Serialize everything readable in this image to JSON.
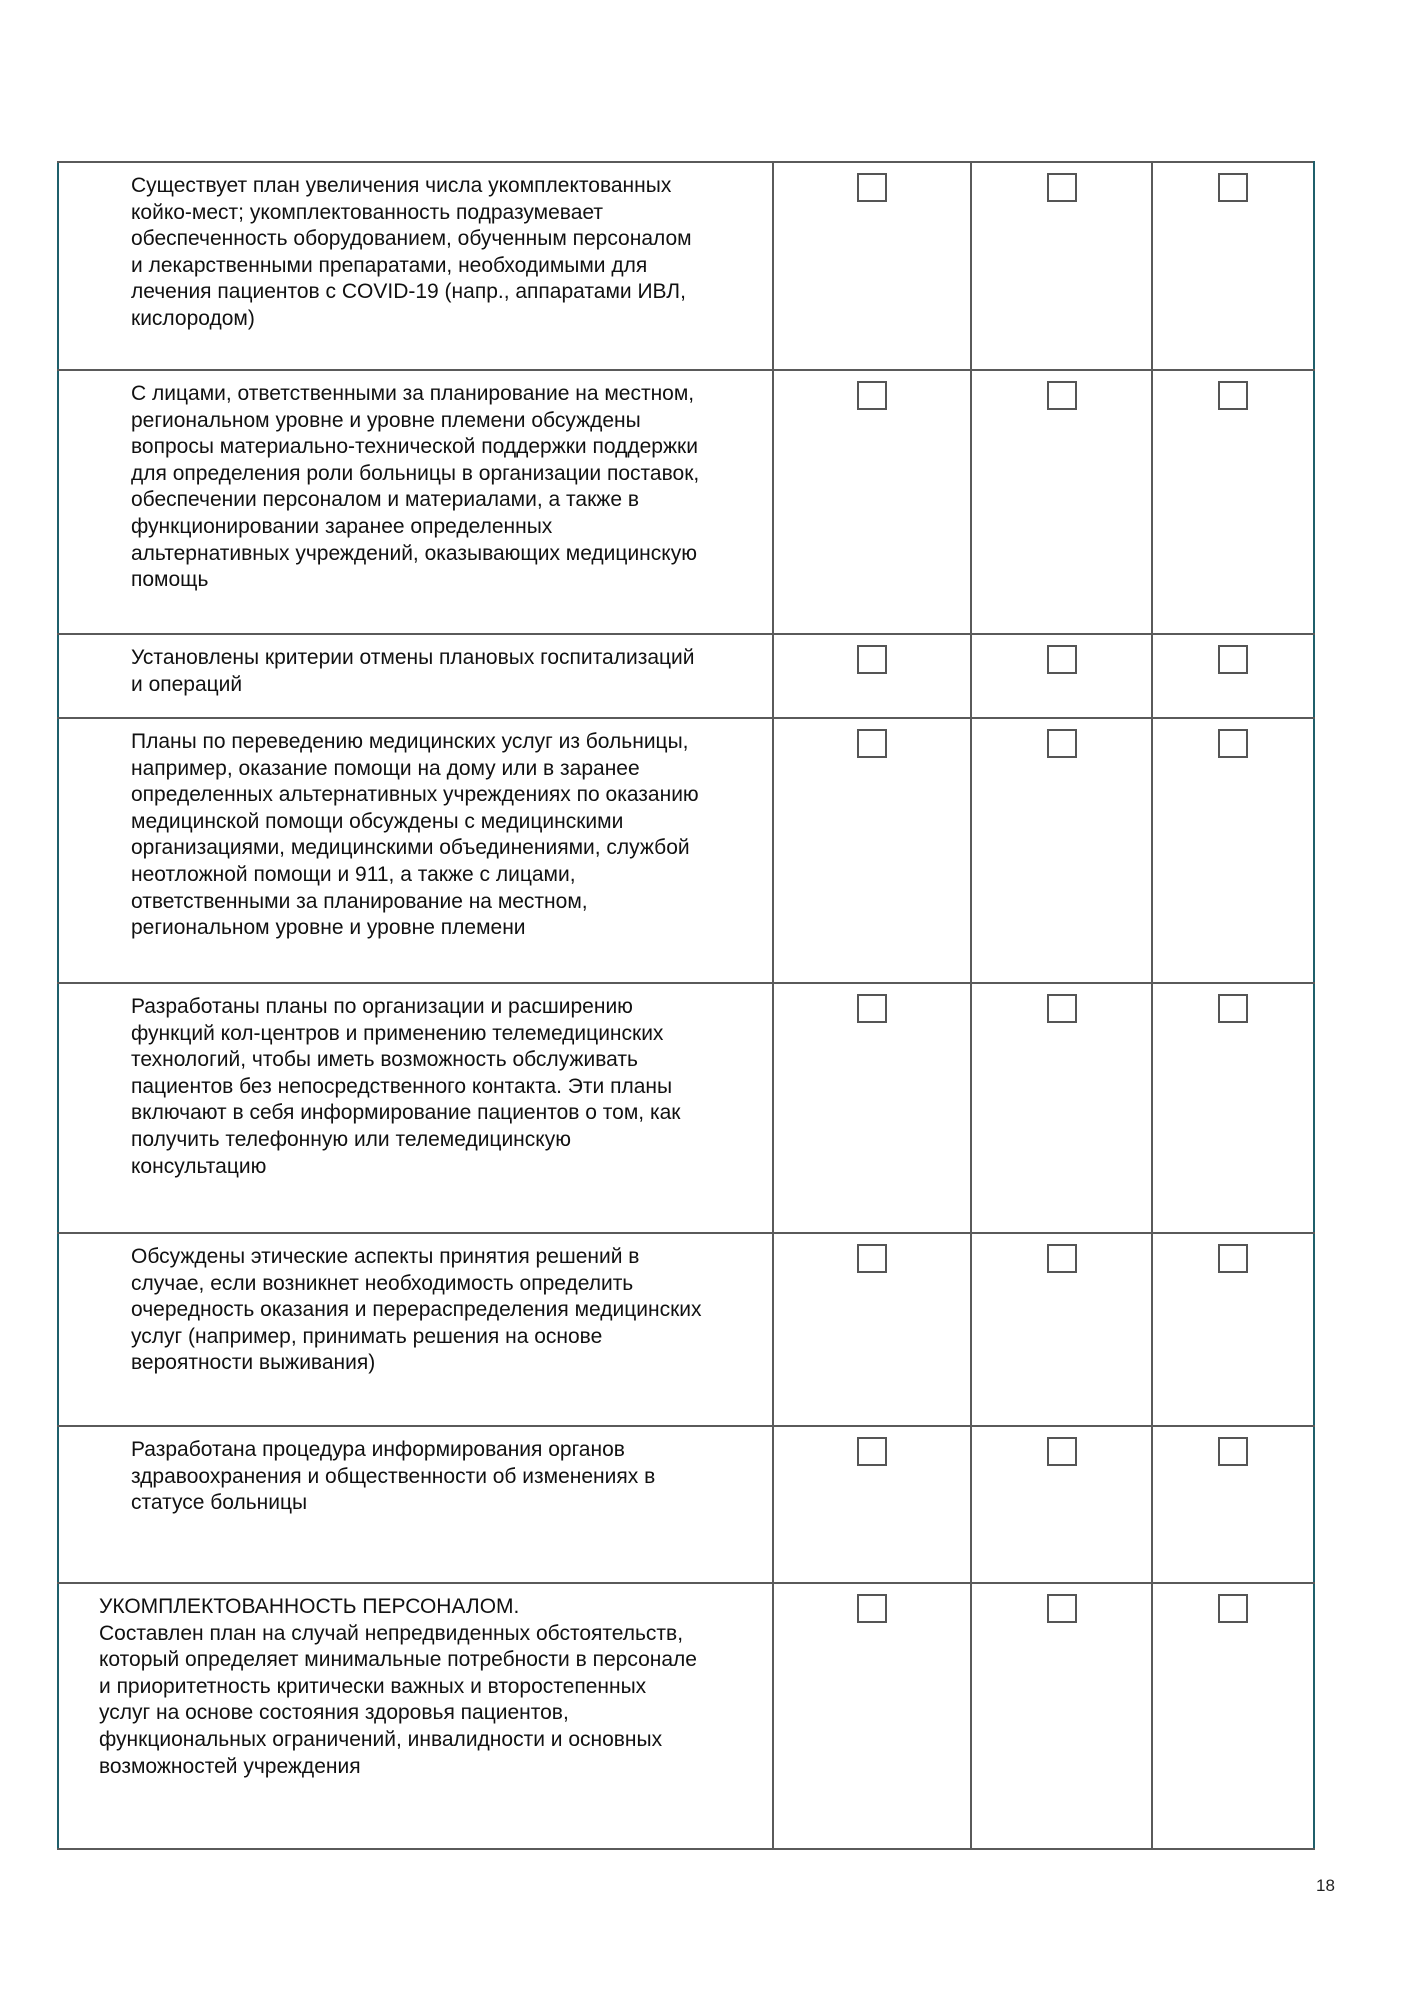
{
  "rows": [
    {
      "text": "Существует план увеличения числа укомплектованных койко-мест; укомплектованность подразумевает обеспеченность оборудованием, обученным персоналом и лекарственными препаратами, необходимыми для лечения пациентов с COVID-19 (напр., аппаратами ИВЛ, кислородом)",
      "checked": [
        false,
        false,
        false
      ]
    },
    {
      "text": "С лицами, ответственными за планирование на местном, региональном уровне и уровне племени обсуждены вопросы материально-технической поддержки поддержки для определения роли больницы в организации поставок, обеспечении персоналом и материалами, а также в функционировании заранее определенных альтернативных учреждений, оказывающих медицинскую помощь",
      "checked": [
        false,
        false,
        false
      ]
    },
    {
      "text": "Установлены критерии отмены плановых госпитализаций и операций",
      "checked": [
        false,
        false,
        false
      ]
    },
    {
      "text": "Планы по переведению медицинских услуг из больницы, например, оказание помощи на дому или в заранее определенных альтернативных учреждениях по оказанию медицинской помощи обсуждены с медицинскими организациями, медицинскими объединениями, службой неотложной помощи и 911, а также с лицами, ответственными за планирование на местном, региональном уровне и уровне племени",
      "checked": [
        false,
        false,
        false
      ]
    },
    {
      "text": "Разработаны планы по организации и расширению функций кол-центров и применению телемедицинских технологий, чтобы иметь возможность обслуживать пациентов без непосредственного контакта. Эти планы включают в себя информирование пациентов о том, как получить телефонную или телемедицинскую консультацию",
      "checked": [
        false,
        false,
        false
      ]
    },
    {
      "text": "Обсуждены этические аспекты принятия решений в случае, если возникнет необходимость определить очередность оказания и перераспределения медицинских услуг (например, принимать решения на основе вероятности выживания)",
      "checked": [
        false,
        false,
        false
      ]
    },
    {
      "text": "Разработана процедура информирования органов здравоохранения и общественности об изменениях в статусе больницы",
      "checked": [
        false,
        false,
        false
      ]
    },
    {
      "heading": "УКОМПЛЕКТОВАННОСТЬ ПЕРСОНАЛОМ.",
      "text": "Составлен план на случай непредвиденных обстоятельств, который определяет минимальные потребности в персонале и приоритетность критически важных и второстепенных услуг на основе состояния здоровья пациентов, функциональных ограничений, инвалидности и основных возможностей учреждения",
      "checked": [
        false,
        false,
        false
      ]
    }
  ],
  "page_number": "18",
  "colors": {
    "border": "#5a5a5a",
    "outer_border": "#1f5f6b"
  }
}
